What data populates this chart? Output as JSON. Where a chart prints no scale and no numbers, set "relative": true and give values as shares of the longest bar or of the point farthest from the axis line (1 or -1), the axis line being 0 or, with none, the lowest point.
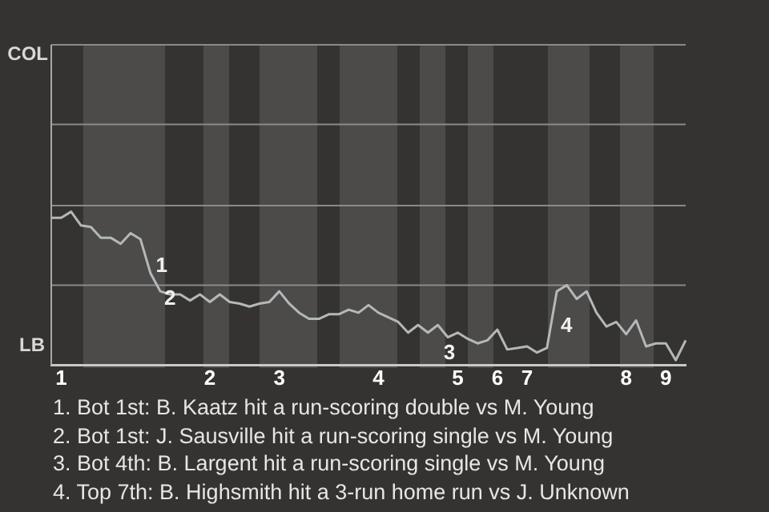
{
  "chart_data": {
    "type": "line",
    "relative": true,
    "categories": [
      null,
      "1",
      null,
      null,
      null,
      null,
      null,
      null,
      null,
      null,
      null,
      null,
      null,
      null,
      null,
      null,
      "2",
      null,
      null,
      null,
      null,
      null,
      null,
      "3",
      null,
      null,
      null,
      null,
      null,
      null,
      null,
      null,
      null,
      "4",
      null,
      null,
      null,
      null,
      null,
      null,
      null,
      "5",
      null,
      null,
      null,
      "6",
      null,
      null,
      "7",
      null,
      null,
      null,
      null,
      null,
      null,
      null,
      null,
      null,
      "8",
      null,
      null,
      null,
      "9",
      null,
      null
    ],
    "series": [
      {
        "color": "#b4b8b8",
        "values": [
          0.96,
          0.96,
          1,
          0.91,
          0.9,
          0.83,
          0.83,
          0.79,
          0.86,
          0.82,
          0.6,
          0.48,
          0.46,
          0.46,
          0.42,
          0.46,
          0.41,
          0.46,
          0.41,
          0.4,
          0.38,
          0.4,
          0.41,
          0.48,
          0.4,
          0.34,
          0.3,
          0.3,
          0.33,
          0.33,
          0.36,
          0.34,
          0.39,
          0.34,
          0.31,
          0.28,
          0.21,
          0.26,
          0.21,
          0.26,
          0.18,
          0.21,
          0.17,
          0.14,
          0.16,
          0.23,
          0.1,
          0.11,
          0.12,
          0.08,
          0.11,
          0.48,
          0.52,
          0.43,
          0.48,
          0.34,
          0.25,
          0.28,
          0.2,
          0.29,
          0.12,
          0.14,
          0.14,
          0.03,
          0.16
        ]
      }
    ],
    "ref_lines": [
      {
        "axis": "y",
        "value": 0.52,
        "color": "#8a8a8a"
      },
      {
        "axis": "y",
        "value": 1.04,
        "color": "#8a8a8a"
      },
      {
        "axis": "y",
        "value": 1.57,
        "color": "#8a8a8a"
      },
      {
        "axis": "y",
        "value": 2.09,
        "color": "#8a8a8a"
      }
    ],
    "marker": "none",
    "line_style": "solid",
    "legend": false,
    "annotations": [
      "COL",
      "LB",
      "1",
      "2",
      "3",
      "4",
      "1. Bot 1st: B. Kaatz hit a run-scoring double vs M. Young",
      "2. Bot 1st: J. Sausville hit a run-scoring single vs M. Young",
      "3. Bot 4th: B. Largent hit a run-scoring single vs M. Young",
      "4. Top 7th: B. Highsmith hit a 3-run home run vs J. Unknown"
    ]
  }
}
